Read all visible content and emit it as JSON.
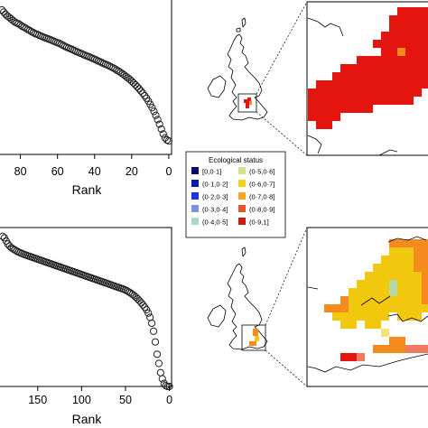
{
  "chart_data": [
    {
      "type": "scatter",
      "panel": "top",
      "xlabel": "Rank",
      "ylabel": "",
      "x_reversed": true,
      "xlim": [
        91,
        -1.5
      ],
      "ylim": [
        0,
        1
      ],
      "xticks": [
        80,
        60,
        40,
        20,
        0
      ],
      "x": [
        90,
        89,
        88,
        87,
        86,
        85,
        84,
        83,
        82,
        81,
        80,
        79,
        78,
        77,
        76,
        75,
        74,
        73,
        72,
        71,
        70,
        69,
        68,
        67,
        66,
        65,
        64,
        63,
        62,
        61,
        60,
        59,
        58,
        57,
        56,
        55,
        54,
        53,
        52,
        51,
        50,
        49,
        48,
        47,
        46,
        45,
        44,
        43,
        42,
        41,
        40,
        39,
        38,
        37,
        36,
        35,
        34,
        33,
        32,
        31,
        30,
        29,
        28,
        27,
        26,
        25,
        24,
        23,
        22,
        21,
        20,
        19,
        18,
        17,
        16,
        15,
        14,
        13,
        12,
        11,
        10,
        9,
        8,
        7,
        6,
        5,
        4,
        3,
        2,
        1,
        0
      ],
      "y": [
        0.947,
        0.933,
        0.919,
        0.907,
        0.898,
        0.888,
        0.877,
        0.868,
        0.861,
        0.856,
        0.848,
        0.839,
        0.833,
        0.826,
        0.818,
        0.812,
        0.804,
        0.798,
        0.791,
        0.787,
        0.781,
        0.776,
        0.771,
        0.766,
        0.761,
        0.757,
        0.752,
        0.747,
        0.742,
        0.737,
        0.732,
        0.727,
        0.721,
        0.715,
        0.708,
        0.702,
        0.697,
        0.692,
        0.687,
        0.681,
        0.675,
        0.67,
        0.665,
        0.66,
        0.654,
        0.649,
        0.644,
        0.64,
        0.634,
        0.629,
        0.624,
        0.618,
        0.612,
        0.607,
        0.601,
        0.595,
        0.59,
        0.585,
        0.579,
        0.573,
        0.567,
        0.56,
        0.552,
        0.545,
        0.537,
        0.528,
        0.52,
        0.51,
        0.501,
        0.491,
        0.48,
        0.468,
        0.456,
        0.443,
        0.43,
        0.416,
        0.401,
        0.385,
        0.368,
        0.349,
        0.328,
        0.306,
        0.282,
        0.256,
        0.228,
        0.198,
        0.166,
        0.134,
        0.108,
        0.094,
        0.088
      ]
    },
    {
      "type": "scatter",
      "panel": "bottom",
      "xlabel": "Rank",
      "ylabel": "",
      "x_reversed": true,
      "xlim": [
        193,
        -2.5
      ],
      "ylim": [
        0,
        1
      ],
      "xticks": [
        150,
        100,
        50,
        0
      ],
      "x_start": 190,
      "x_step": -2,
      "y": [
        0.978,
        0.968,
        0.948,
        0.928,
        0.914,
        0.904,
        0.896,
        0.889,
        0.882,
        0.876,
        0.871,
        0.866,
        0.861,
        0.857,
        0.853,
        0.849,
        0.845,
        0.841,
        0.837,
        0.833,
        0.829,
        0.825,
        0.821,
        0.817,
        0.813,
        0.809,
        0.805,
        0.801,
        0.797,
        0.793,
        0.789,
        0.785,
        0.781,
        0.777,
        0.773,
        0.769,
        0.765,
        0.761,
        0.757,
        0.753,
        0.749,
        0.745,
        0.741,
        0.737,
        0.733,
        0.729,
        0.725,
        0.721,
        0.717,
        0.713,
        0.709,
        0.705,
        0.701,
        0.697,
        0.693,
        0.689,
        0.685,
        0.681,
        0.677,
        0.673,
        0.669,
        0.665,
        0.661,
        0.657,
        0.653,
        0.649,
        0.645,
        0.641,
        0.637,
        0.633,
        0.628,
        0.622,
        0.615,
        0.608,
        0.6,
        0.591,
        0.581,
        0.57,
        0.558,
        0.545,
        0.531,
        0.516,
        0.5,
        0.478,
        0.45,
        0.412,
        0.36,
        0.29,
        0.21,
        0.15,
        0.09,
        0.05,
        0.02,
        0.005,
        0.0,
        0.0
      ]
    }
  ],
  "legend": {
    "title": "Ecological status",
    "items": [
      {
        "label": "[0,0·1]",
        "color": "#0a0a6b"
      },
      {
        "label": "(0·1,0·2]",
        "color": "#0b1ba6"
      },
      {
        "label": "(0·2,0·3]",
        "color": "#2033d9"
      },
      {
        "label": "(0·3,0·4]",
        "color": "#7f8fe8"
      },
      {
        "label": "(0·4,0·5]",
        "color": "#a6d9c9"
      },
      {
        "label": "(0·5,0·6]",
        "color": "#d6e08a"
      },
      {
        "label": "(0·6,0·7]",
        "color": "#f2d21a"
      },
      {
        "label": "(0·7,0·8]",
        "color": "#f5a623"
      },
      {
        "label": "(0·8,0·9]",
        "color": "#e8532a"
      },
      {
        "label": "(0·9,1]",
        "color": "#cc1a14"
      }
    ]
  },
  "map_colors": {
    "red": "#e4140e",
    "dark_red": "#cc1a14",
    "orange": "#f58a1f",
    "yellow": "#f2c80f",
    "pale_yellow": "#f7e27a",
    "light_green": "#b5d8a3",
    "salmon": "#f07a60"
  }
}
